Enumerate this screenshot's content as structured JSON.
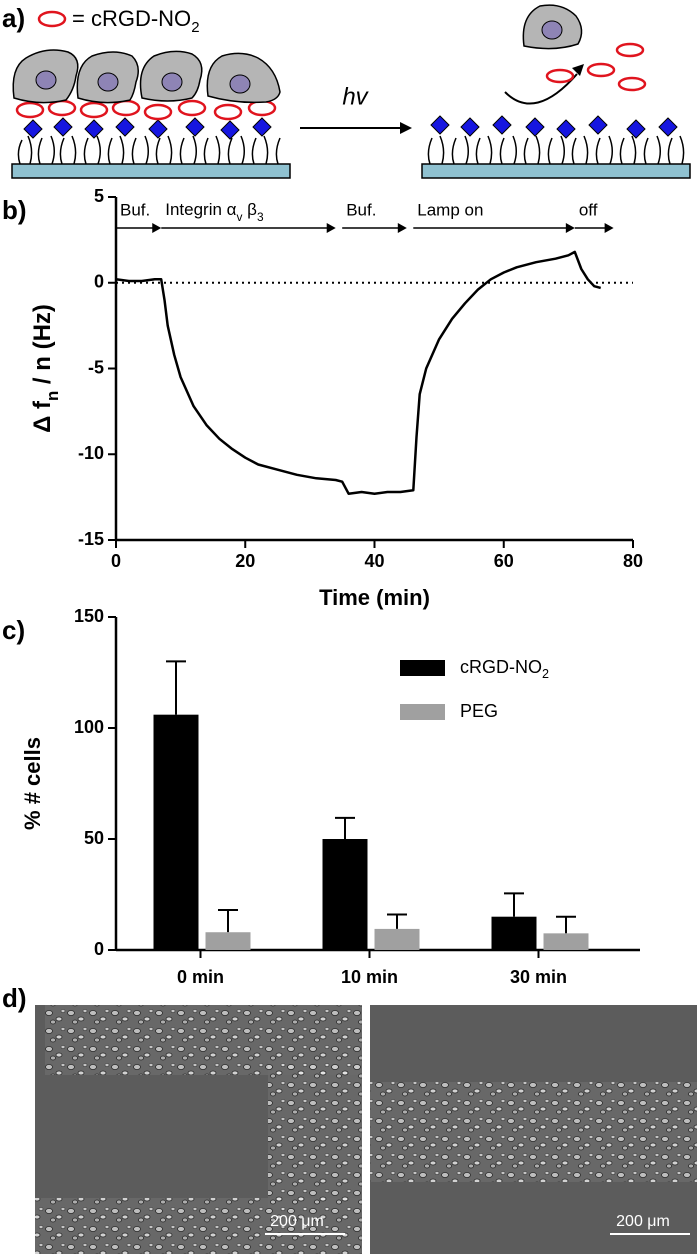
{
  "panel_labels": [
    "a)",
    "b)",
    "c)",
    "d)"
  ],
  "schematic": {
    "legend_text": [
      "= cRGD-NO",
      "2"
    ],
    "light_label": "hv"
  },
  "chart_data": [
    {
      "type": "line",
      "xlabel": "Time (min)",
      "ylabel": [
        "Δ f",
        "n",
        " / n (Hz)"
      ],
      "x": [
        0,
        2,
        4,
        6,
        7,
        7.5,
        8,
        9,
        10,
        12,
        14,
        16,
        18,
        20,
        22,
        25,
        28,
        31,
        34,
        35,
        36,
        38,
        40,
        42,
        44,
        46,
        46.5,
        47,
        48,
        50,
        52,
        54,
        56,
        58,
        60,
        62,
        65,
        68,
        70,
        71,
        72,
        73,
        74,
        75
      ],
      "values": [
        0.2,
        0.1,
        0.1,
        0.2,
        0.2,
        -1,
        -2.5,
        -4.2,
        -5.5,
        -7.2,
        -8.3,
        -9.1,
        -9.7,
        -10.2,
        -10.6,
        -10.9,
        -11.2,
        -11.4,
        -11.5,
        -11.6,
        -12.3,
        -12.2,
        -12.3,
        -12.2,
        -12.2,
        -12.1,
        -9,
        -6.5,
        -5,
        -3.3,
        -2.1,
        -1.2,
        -0.4,
        0.2,
        0.6,
        0.9,
        1.2,
        1.4,
        1.6,
        1.8,
        0.8,
        0.2,
        -0.2,
        -0.3
      ],
      "color": "#000000",
      "xlim": [
        0,
        80
      ],
      "xticks": [
        0,
        20,
        40,
        60,
        80
      ],
      "ylim": [
        -15,
        5
      ],
      "yticks": [
        -15,
        -10,
        -5,
        0,
        5
      ],
      "reference_line": 0,
      "annotations": [
        {
          "text": "Buf.",
          "start": 0,
          "end": 7
        },
        {
          "text": [
            "Integrin α",
            "v",
            " β",
            "3"
          ],
          "start": 7,
          "end": 34
        },
        {
          "text": "Buf.",
          "start": 35,
          "end": 45
        },
        {
          "text": "Lamp on",
          "start": 46,
          "end": 71
        },
        {
          "text": "off",
          "start": 71,
          "end": 77
        }
      ]
    },
    {
      "type": "bar",
      "ylabel": "% # cells",
      "categories": [
        "0 min",
        "10 min",
        "30 min"
      ],
      "series": [
        {
          "name": [
            "cRGD-NO",
            "2"
          ],
          "color": "#000000",
          "values": [
            106,
            50,
            15
          ],
          "errors": [
            24,
            9.5,
            10.5
          ]
        },
        {
          "name": "PEG",
          "color": "#a0a0a0",
          "values": [
            8,
            9.5,
            7.5
          ],
          "errors": [
            10,
            6.5,
            7.5
          ]
        }
      ],
      "ylim": [
        0,
        150
      ],
      "yticks": [
        0,
        50,
        100,
        150
      ]
    }
  ],
  "micrographs": {
    "scale_bars": [
      "200 μm",
      "200 μm"
    ]
  }
}
